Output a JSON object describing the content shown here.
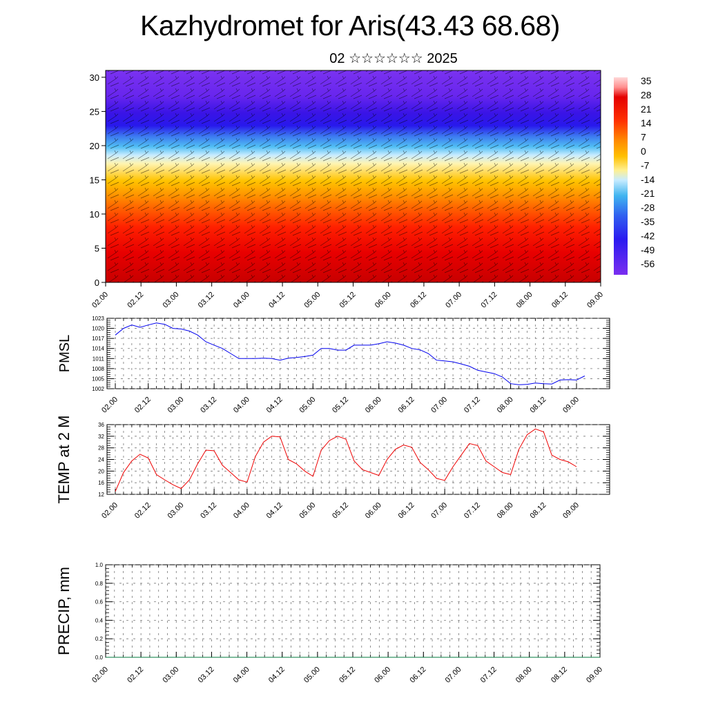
{
  "title": "Kazhydromet for Aris(43.43 68.68)",
  "subtitle": "02 ☆☆☆☆☆☆ 2025",
  "colors": {
    "pmsl_line": "#0000ee",
    "temp_line": "#ee0000",
    "precip_line": "#007a3d",
    "colorbar": [
      "#ffd0d0",
      "#e40000",
      "#ff3a00",
      "#ff8c00",
      "#ffc800",
      "#fff080",
      "#bde8ff",
      "#4ab8f0",
      "#3060f0",
      "#2a1af0",
      "#7a2ef0"
    ]
  },
  "chart_data": [
    {
      "type": "heatmap",
      "name": "cross-section",
      "title": "",
      "yticks": [
        0,
        5,
        10,
        15,
        20,
        25,
        30
      ],
      "ylim": [
        0,
        31
      ],
      "xticks": [
        "02.00",
        "02.12",
        "03.00",
        "03.12",
        "04.00",
        "04.12",
        "05.00",
        "05.12",
        "06.00",
        "06.12",
        "07.00",
        "07.12",
        "08.00",
        "08.12",
        "09.00"
      ],
      "colorbar_labels": [
        "35",
        "28",
        "21",
        "14",
        "7",
        "0",
        "-7",
        "-14",
        "-21",
        "-28",
        "-35",
        "-42",
        "-49",
        "-56"
      ],
      "layers": [
        {
          "from": 0,
          "to": 7,
          "color": "deep-red"
        },
        {
          "from": 7,
          "to": 11,
          "color": "red-orange"
        },
        {
          "from": 11,
          "to": 16,
          "color": "orange-yellow"
        },
        {
          "from": 16,
          "to": 18,
          "color": "pale-yellow"
        },
        {
          "from": 18,
          "to": 21,
          "color": "light-blue"
        },
        {
          "from": 21,
          "to": 25,
          "color": "blue"
        },
        {
          "from": 25,
          "to": 31,
          "color": "violet"
        }
      ]
    },
    {
      "type": "line",
      "name": "pmsl",
      "ylabel": "PMSL",
      "yticks": [
        1002,
        1005,
        1008,
        1011,
        1014,
        1017,
        1020,
        1023
      ],
      "ylim": [
        1002,
        1023
      ],
      "xticks": [
        "02.00",
        "02.12",
        "03.00",
        "03.12",
        "04.00",
        "04.12",
        "05.00",
        "05.12",
        "06.00",
        "06.12",
        "07.00",
        "07.12",
        "08.00",
        "08.12",
        "09.00"
      ],
      "step_hours": 3,
      "values": [
        1018,
        1020,
        1021,
        1020.3,
        1021,
        1021.6,
        1021.2,
        1020,
        1019.8,
        1019.2,
        1018,
        1016,
        1015,
        1014,
        1012.5,
        1011,
        1011,
        1011,
        1011.1,
        1011,
        1010.5,
        1011.1,
        1011.3,
        1011.6,
        1012,
        1014,
        1014,
        1013.5,
        1013.5,
        1015,
        1015,
        1015,
        1015.4,
        1016,
        1015.6,
        1015,
        1014,
        1013.6,
        1012.5,
        1010.5,
        1010.3,
        1010,
        1009.4,
        1008.7,
        1007.5,
        1007,
        1006.5,
        1005.5,
        1003.5,
        1003.2,
        1003.3,
        1003.7,
        1003.5,
        1003.4,
        1004.6,
        1004.7,
        1004.6,
        1005.8
      ]
    },
    {
      "type": "line",
      "name": "temp",
      "ylabel": "TEMP at 2 M",
      "yticks": [
        12,
        16,
        20,
        24,
        28,
        32,
        36
      ],
      "ylim": [
        12,
        36
      ],
      "xticks": [
        "02.00",
        "02.12",
        "03.00",
        "03.12",
        "04.00",
        "04.12",
        "05.00",
        "05.12",
        "06.00",
        "06.12",
        "07.00",
        "07.12",
        "08.00",
        "08.12",
        "09.00"
      ],
      "step_hours": 3,
      "values": [
        13,
        19.5,
        23.5,
        25.8,
        24.5,
        18.8,
        17,
        15.3,
        14,
        17,
        22.5,
        27.2,
        27,
        22,
        19.5,
        17,
        16.2,
        25,
        30,
        32,
        31.8,
        24,
        22.5,
        20,
        18.2,
        27.2,
        30.5,
        32,
        31,
        23.5,
        20.5,
        19.5,
        18.5,
        24,
        27.5,
        29,
        28.2,
        23,
        20.5,
        17.5,
        16.8,
        21.5,
        25.5,
        29.5,
        28.8,
        23.5,
        21.5,
        19.5,
        18.8,
        27.5,
        32.5,
        34.5,
        33.5,
        25.5,
        24,
        23.2,
        21.5
      ]
    },
    {
      "type": "line",
      "name": "precip",
      "ylabel": "PRECIP, mm",
      "yticks": [
        "0.0",
        "0.2",
        "0.4",
        "0.6",
        "0.8",
        "1.0"
      ],
      "ylim": [
        0,
        1
      ],
      "xticks": [
        "02.00",
        "02.12",
        "03.00",
        "03.12",
        "04.00",
        "04.12",
        "05.00",
        "05.12",
        "06.00",
        "06.12",
        "07.00",
        "07.12",
        "08.00",
        "08.12",
        "09.00"
      ],
      "values": [
        0,
        0
      ]
    }
  ]
}
